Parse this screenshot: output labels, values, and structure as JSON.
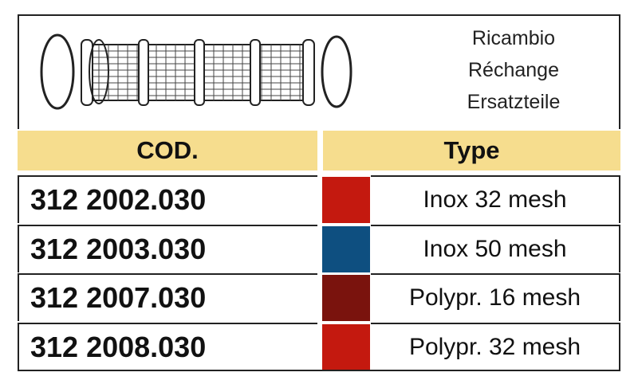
{
  "header": {
    "labels": [
      "Ricambio",
      "Réchange",
      "Ersatzteile"
    ]
  },
  "table": {
    "columns": [
      "COD.",
      "Type"
    ],
    "rows": [
      {
        "code": "312 2002.030",
        "color": "#c4190f",
        "type": "Inox 32 mesh"
      },
      {
        "code": "312 2003.030",
        "color": "#0e4f80",
        "type": "Inox 50 mesh"
      },
      {
        "code": "312 2007.030",
        "color": "#7a130d",
        "type": "Polypr. 16 mesh"
      },
      {
        "code": "312 2008.030",
        "color": "#c4190f",
        "type": "Polypr. 32 mesh"
      }
    ]
  }
}
